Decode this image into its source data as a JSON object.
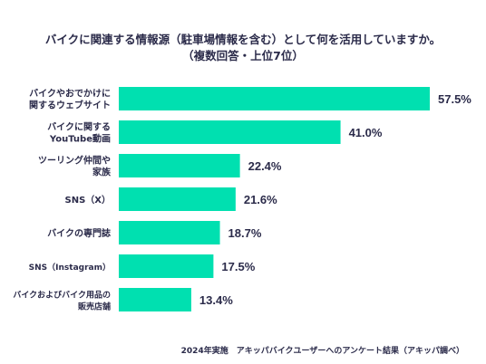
{
  "title_line1": "バイクに関連する情報源（駐車場情報を含む）として何を活用していますか。",
  "title_line2": "（複数回答・上位7位）",
  "footer": "2024年実施　アキッパバイクユーザーへのアンケート結果（アキッパ調べ）",
  "colors": {
    "bar": "#00e0b0",
    "text": "#2b2b4a"
  },
  "chart_data": {
    "type": "bar",
    "orientation": "horizontal",
    "categories": [
      [
        "バイクやおでかけに",
        "関するウェブサイト"
      ],
      [
        "バイクに関する",
        "YouTube動画"
      ],
      [
        "ツーリング仲間や",
        "家族"
      ],
      [
        "SNS（X）"
      ],
      [
        "バイクの専門誌"
      ],
      [
        "SNS（Instagram）"
      ],
      [
        "バイクおよびバイク用品の",
        "販売店舗"
      ]
    ],
    "values": [
      57.5,
      41.0,
      22.4,
      21.6,
      18.7,
      17.5,
      13.4
    ],
    "value_labels": [
      "57.5%",
      "41.0%",
      "22.4%",
      "21.6%",
      "18.7%",
      "17.5%",
      "13.4%"
    ],
    "unit": "%",
    "xlim": [
      0,
      57.5
    ],
    "grid": false
  }
}
